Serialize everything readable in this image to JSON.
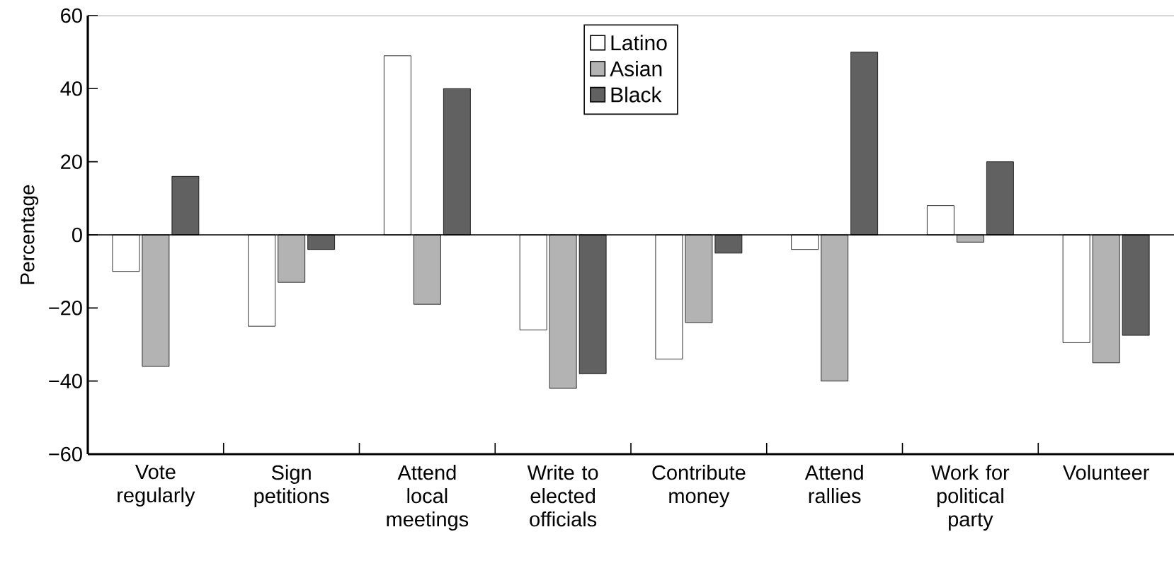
{
  "chart_data": {
    "type": "bar",
    "ylabel": "Percentage",
    "categories": [
      "Vote regularly",
      "Sign petitions",
      "Attend local meetings",
      "Write to elected officials",
      "Contribute money",
      "Attend rallies",
      "Work for political party",
      "Volunteer"
    ],
    "series": [
      {
        "name": "Latino",
        "color": "#ffffff",
        "values": [
          -10,
          -25,
          49,
          -26,
          -34,
          -4,
          8,
          -29.5
        ]
      },
      {
        "name": "Asian",
        "color": "#b3b3b3",
        "values": [
          -36,
          -13,
          -19,
          -42,
          -24,
          -40,
          -2,
          -35
        ]
      },
      {
        "name": "Black",
        "color": "#616161",
        "values": [
          16,
          -4,
          40,
          -38,
          -5,
          50,
          20,
          -27.5
        ]
      }
    ],
    "ylim": [
      -60,
      60
    ],
    "yticks": [
      {
        "value": -60,
        "label": "−60"
      },
      {
        "value": -40,
        "label": "−40"
      },
      {
        "value": -20,
        "label": "−20"
      },
      0,
      20,
      40,
      60
    ],
    "ref_lines": [
      {
        "axis": "y",
        "value": 0,
        "color": "#000000"
      }
    ],
    "legend": "top",
    "grid": false
  }
}
